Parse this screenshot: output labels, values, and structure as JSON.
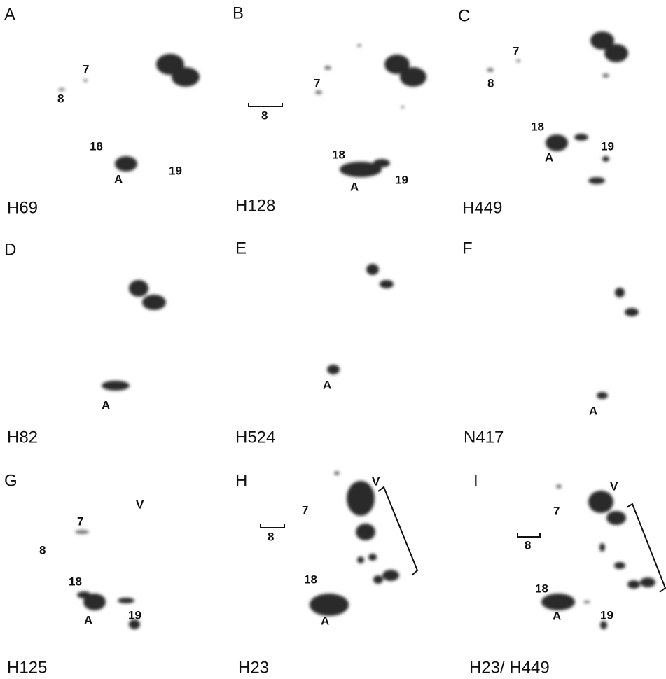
{
  "panels": [
    {
      "letter": "A",
      "name": "H69",
      "labels": [
        "7",
        "8",
        "18",
        "A",
        "19"
      ]
    },
    {
      "letter": "B",
      "name": "H128",
      "labels": [
        "7",
        "8",
        "18",
        "A",
        "19"
      ]
    },
    {
      "letter": "C",
      "name": "H449",
      "labels": [
        "7",
        "8",
        "18",
        "A",
        "19"
      ]
    },
    {
      "letter": "D",
      "name": "H82",
      "labels": [
        "A"
      ]
    },
    {
      "letter": "E",
      "name": "H524",
      "labels": [
        "A"
      ]
    },
    {
      "letter": "F",
      "name": "N417",
      "labels": [
        "A"
      ]
    },
    {
      "letter": "G",
      "name": "H125",
      "labels": [
        "V",
        "7",
        "8",
        "18",
        "A",
        "19"
      ]
    },
    {
      "letter": "H",
      "name": "H23",
      "labels": [
        "V",
        "7",
        "8",
        "18",
        "A"
      ]
    },
    {
      "letter": "I",
      "name": "H23/ H449",
      "labels": [
        "V",
        "7",
        "8",
        "18",
        "A",
        "19"
      ]
    }
  ]
}
